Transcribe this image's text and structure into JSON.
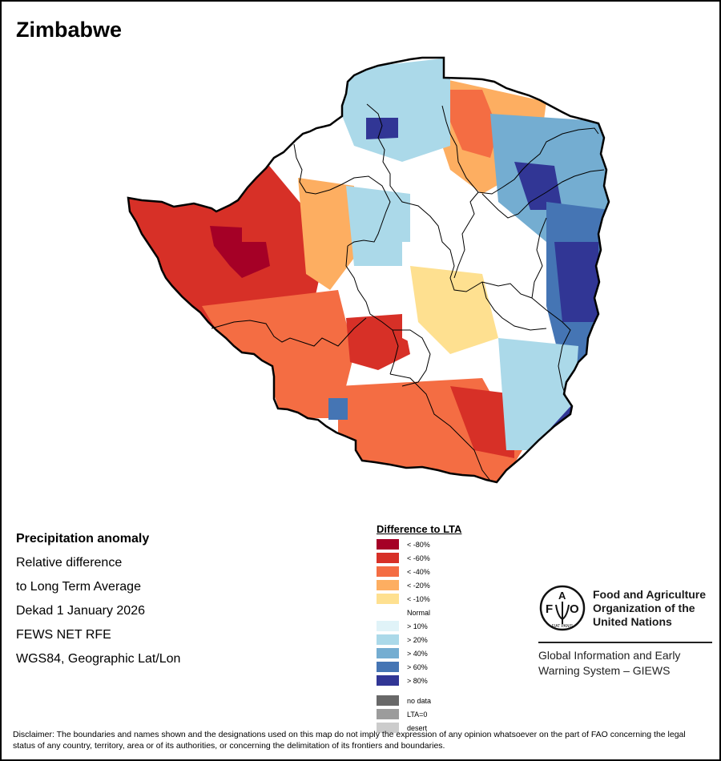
{
  "title": "Zimbabwe",
  "info": {
    "lines": [
      "Precipitation anomaly",
      "Relative difference",
      "to Long Term Average",
      "Dekad 1 January 2026",
      "FEWS NET RFE",
      "WGS84, Geographic Lat/Lon"
    ]
  },
  "legend": {
    "title": "Difference to LTA",
    "classes": [
      {
        "label": "< -80%",
        "color": "#a50026"
      },
      {
        "label": "< -60%",
        "color": "#d73027"
      },
      {
        "label": "< -40%",
        "color": "#f46d43"
      },
      {
        "label": "< -20%",
        "color": "#fdae61"
      },
      {
        "label": "< -10%",
        "color": "#fee090"
      },
      {
        "label": "Normal",
        "color": "#ffffff"
      },
      {
        "label": "> 10%",
        "color": "#e0f3f8"
      },
      {
        "label": "> 20%",
        "color": "#abd9e9"
      },
      {
        "label": "> 40%",
        "color": "#74add1"
      },
      {
        "label": "> 60%",
        "color": "#4575b4"
      },
      {
        "label": "> 80%",
        "color": "#313695"
      }
    ],
    "special": [
      {
        "label": "no data",
        "color": "#686868"
      },
      {
        "label": "LTA=0",
        "color": "#9c9c9c"
      },
      {
        "label": "desert",
        "color": "#cccccc"
      }
    ]
  },
  "map": {
    "country": "Zimbabwe",
    "anomaly_regions": [
      {
        "region": "west-northwest",
        "class": "< -60%"
      },
      {
        "region": "west-core",
        "class": "< -80%"
      },
      {
        "region": "southwest",
        "class": "< -40%"
      },
      {
        "region": "south-central",
        "class": "< -60%"
      },
      {
        "region": "south",
        "class": "< -40%"
      },
      {
        "region": "south-east",
        "class": "< -60%"
      },
      {
        "region": "center-west",
        "class": "< -20%"
      },
      {
        "region": "north-central",
        "class": "< -20%"
      },
      {
        "region": "north-central-core",
        "class": "< -40%"
      },
      {
        "region": "northwest",
        "class": "> 20%"
      },
      {
        "region": "northwest-core",
        "class": "> 80%"
      },
      {
        "region": "central-west",
        "class": "> 20%"
      },
      {
        "region": "center",
        "class": "Normal"
      },
      {
        "region": "center-east",
        "class": "< -10%"
      },
      {
        "region": "northeast",
        "class": "> 40%"
      },
      {
        "region": "northeast-core",
        "class": "> 80%"
      },
      {
        "region": "east",
        "class": "> 60%"
      },
      {
        "region": "east-core",
        "class": "> 80%"
      },
      {
        "region": "southeast-tip",
        "class": "> 80%"
      },
      {
        "region": "southeast",
        "class": "> 20%"
      },
      {
        "region": "south-west-pocket",
        "class": "> 60%"
      }
    ]
  },
  "fao": {
    "name_lines": [
      "Food and Agriculture",
      "Organization of the",
      "United Nations"
    ],
    "giews_lines": [
      "Global Information and Early",
      "Warning System – GIEWS"
    ],
    "logo_letters": [
      "F",
      "A",
      "O"
    ],
    "motto": "FIAT PANIS"
  },
  "disclaimer": "Disclaimer: The boundaries and names shown and the designations used on this map do not imply the expression of any opinion whatsoever on the part of FAO concerning the legal status of any country, territory, area or of its authorities, or concerning the delimitation of its frontiers and boundaries."
}
